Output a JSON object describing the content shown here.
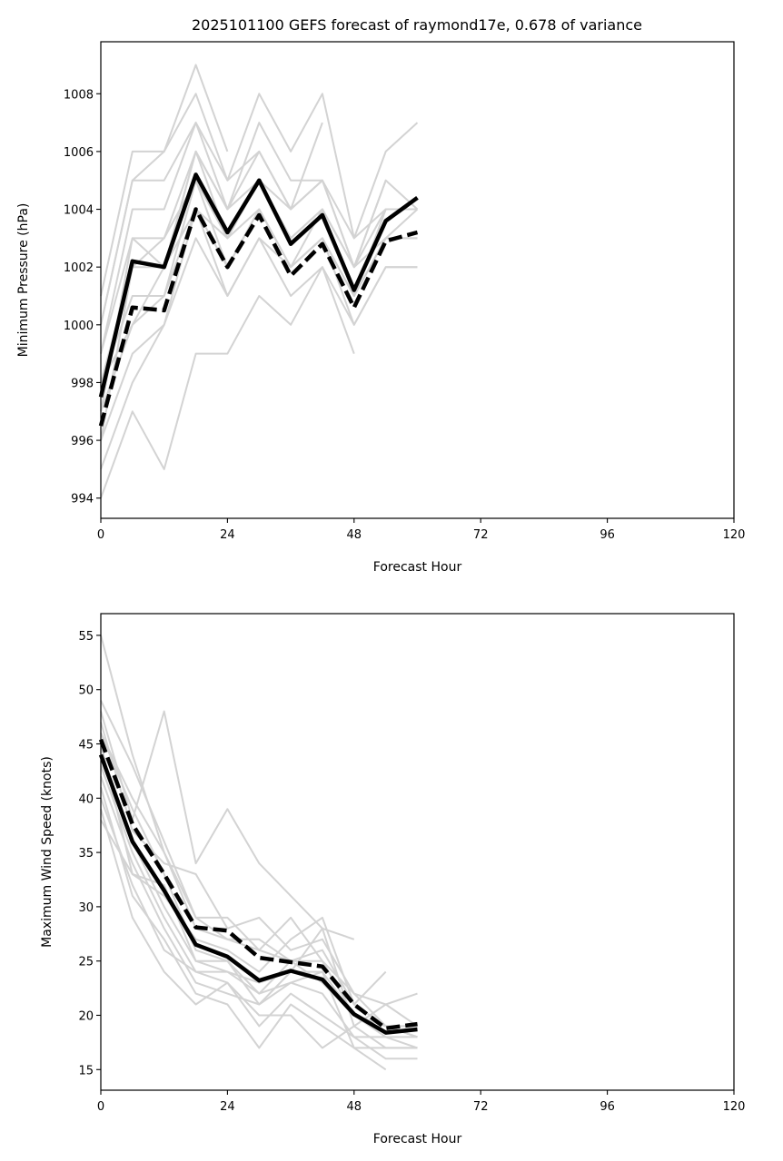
{
  "chart_data": [
    {
      "type": "line",
      "title": "2025101100 GEFS forecast of raymond17e, 0.678 of variance",
      "xlabel": "Forecast Hour",
      "ylabel": "Minimum Pressure (hPa)",
      "xlim": [
        0,
        120
      ],
      "ylim": [
        993.3,
        1009.8
      ],
      "xticks": [
        0,
        24,
        48,
        72,
        96,
        120
      ],
      "yticks": [
        994,
        996,
        998,
        1000,
        1002,
        1004,
        1006,
        1008
      ],
      "x": [
        0,
        6,
        12,
        18,
        24,
        30,
        36,
        42,
        48,
        54,
        60
      ],
      "ensemble_color": "#d3d3d3",
      "ensemble_members": [
        [
          994,
          997,
          995,
          999,
          999,
          1001,
          1000,
          1002,
          999
        ],
        [
          995,
          998,
          1000,
          1003,
          1001,
          1003,
          1001,
          1002,
          1000,
          1002,
          1002
        ],
        [
          996,
          999,
          1000,
          1004,
          1002,
          1004,
          1002,
          1003,
          1001,
          1003,
          1004
        ],
        [
          997,
          1000,
          1001,
          1005,
          1003,
          1005,
          1003,
          1004,
          1002,
          1004,
          1004
        ],
        [
          998,
          1001,
          1001,
          1004,
          1003,
          1004,
          1002,
          1003,
          1001,
          1003,
          1003
        ],
        [
          998,
          1002,
          1002,
          1006,
          1004,
          1006,
          1004,
          1005,
          1002,
          1005,
          1004
        ],
        [
          999,
          1003,
          1003,
          1006,
          1004,
          1005,
          1003,
          1004,
          1001,
          1004,
          1004
        ],
        [
          999,
          1004,
          1004,
          1007,
          1005,
          1006,
          1004,
          1005,
          1003,
          1004
        ],
        [
          1000,
          1005,
          1005,
          1007,
          1004,
          1007,
          1005,
          1005,
          1002,
          1005
        ],
        [
          1000,
          1005,
          1006,
          1009,
          1006
        ],
        [
          1001,
          1006,
          1006,
          1008,
          1005,
          1008,
          1006,
          1008,
          1003,
          1006,
          1007
        ],
        [
          997,
          1003,
          1002,
          1006,
          1003,
          1005,
          1004,
          1007
        ],
        [
          996,
          1002,
          1003,
          1005,
          1002,
          1004,
          1002,
          1004,
          1002,
          1003,
          1003
        ],
        [
          998,
          1000,
          1002,
          1004,
          1001,
          1003,
          1002,
          1003,
          1000,
          1002,
          1002
        ]
      ],
      "series": [
        {
          "name": "ensemble mean",
          "style": "solid",
          "values": [
            997.5,
            1002.2,
            1002.0,
            1005.2,
            1003.2,
            1005.0,
            1002.8,
            1003.8,
            1001.2,
            1003.6,
            1004.4
          ]
        },
        {
          "name": "dashed",
          "style": "dashed",
          "values": [
            996.5,
            1000.6,
            1000.5,
            1004.0,
            1002.0,
            1003.8,
            1001.7,
            1002.8,
            1000.6,
            1002.9,
            1003.2
          ]
        }
      ]
    },
    {
      "type": "line",
      "title": "",
      "xlabel": "Forecast Hour",
      "ylabel": "Maximum Wind Speed (knots)",
      "xlim": [
        0,
        120
      ],
      "ylim": [
        13.1,
        57.0
      ],
      "xticks": [
        0,
        24,
        48,
        72,
        96,
        120
      ],
      "yticks": [
        15,
        20,
        25,
        30,
        35,
        40,
        45,
        50,
        55
      ],
      "x": [
        0,
        6,
        12,
        18,
        24,
        30,
        36,
        42,
        48,
        54,
        60
      ],
      "ensemble_color": "#d3d3d3",
      "ensemble_members": [
        [
          55,
          44,
          35,
          28,
          27,
          26,
          25,
          25,
          20,
          19,
          19
        ],
        [
          49,
          43,
          36,
          29,
          27,
          27,
          25,
          26,
          21,
          19,
          18
        ],
        [
          48,
          38,
          48,
          34,
          39,
          34,
          31,
          28,
          27
        ],
        [
          47,
          37,
          34,
          33,
          28,
          29,
          26,
          27,
          22,
          21,
          22
        ],
        [
          46,
          40,
          35,
          29,
          29,
          26,
          29,
          25,
          22,
          19,
          18
        ],
        [
          45,
          33,
          31,
          27,
          26,
          24,
          27,
          29,
          21,
          24
        ],
        [
          44,
          36,
          30,
          25,
          25,
          22,
          25,
          23,
          20,
          18,
          17
        ],
        [
          43,
          35,
          29,
          24,
          24,
          23,
          24,
          28,
          19,
          17,
          17
        ],
        [
          42,
          34,
          28,
          23,
          22,
          21,
          23,
          22,
          18,
          16,
          16
        ],
        [
          41,
          31,
          27,
          22,
          21,
          17,
          21,
          19,
          17,
          15
        ],
        [
          40,
          32,
          26,
          24,
          23,
          19,
          22,
          20,
          18,
          18,
          18
        ],
        [
          39,
          29,
          24,
          21,
          23,
          20,
          20,
          17,
          19,
          21,
          19
        ],
        [
          38,
          33,
          32,
          25,
          24,
          22,
          23,
          24,
          17,
          17,
          17
        ],
        [
          46,
          39,
          33,
          26,
          25,
          21,
          24,
          24,
          20,
          19,
          18
        ]
      ],
      "series": [
        {
          "name": "ensemble mean",
          "style": "solid",
          "values": [
            44.0,
            36.0,
            31.5,
            26.5,
            25.4,
            23.2,
            24.1,
            23.3,
            20.1,
            18.4,
            18.7
          ]
        },
        {
          "name": "dashed",
          "style": "dashed",
          "values": [
            45.4,
            37.6,
            33.0,
            28.1,
            27.8,
            25.3,
            24.9,
            24.5,
            21.0,
            18.8,
            19.2
          ]
        }
      ]
    }
  ]
}
